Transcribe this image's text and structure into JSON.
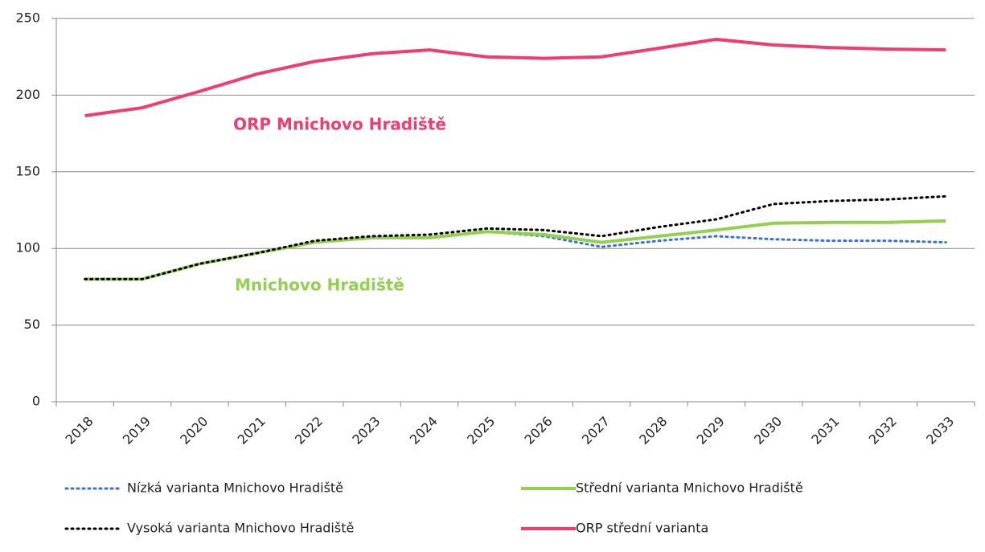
{
  "chart_data": {
    "type": "line",
    "categories": [
      "2018",
      "2019",
      "2020",
      "2021",
      "2022",
      "2023",
      "2024",
      "2025",
      "2026",
      "2027",
      "2028",
      "2029",
      "2030",
      "2031",
      "2032",
      "2033"
    ],
    "series": [
      {
        "name": "Nízká varianta Mnichovo Hradiště",
        "color": "#3b6fe0",
        "style": "dotted",
        "values": [
          80,
          80,
          90,
          97,
          104,
          107,
          107,
          111,
          108,
          101,
          105,
          108,
          106,
          105,
          105,
          104
        ]
      },
      {
        "name": "Střední varianta Mnichovo Hradiště",
        "color": "#92d050",
        "style": "solid",
        "values": [
          80,
          80,
          90,
          97,
          104,
          107,
          107,
          111,
          109,
          104,
          108,
          112,
          116.5,
          117,
          117,
          118
        ]
      },
      {
        "name": "Vysoká varianta Mnichovo Hradiště",
        "color": "#000000",
        "style": "dotted",
        "values": [
          80,
          80,
          90,
          97,
          105,
          108,
          109,
          113,
          112,
          108,
          114,
          119,
          129,
          131,
          132,
          134
        ]
      },
      {
        "name": "ORP střední varianta",
        "color": "#f03c6e",
        "style": "solid",
        "values": [
          186.6,
          191.8,
          202.5,
          213.8,
          222,
          227,
          229.5,
          225,
          224,
          225,
          230.6,
          236.4,
          232.7,
          231,
          230,
          229.5
        ]
      }
    ],
    "annotations": [
      {
        "text": "ORP Mnichovo Hradiště",
        "color": "#f03c6e"
      },
      {
        "text": "Mnichovo Hradiště",
        "color": "#92d050"
      }
    ],
    "ylim": [
      0,
      250
    ],
    "yticks": [
      0,
      50,
      100,
      150,
      200,
      250
    ],
    "grid": true,
    "legend": "bottom"
  }
}
